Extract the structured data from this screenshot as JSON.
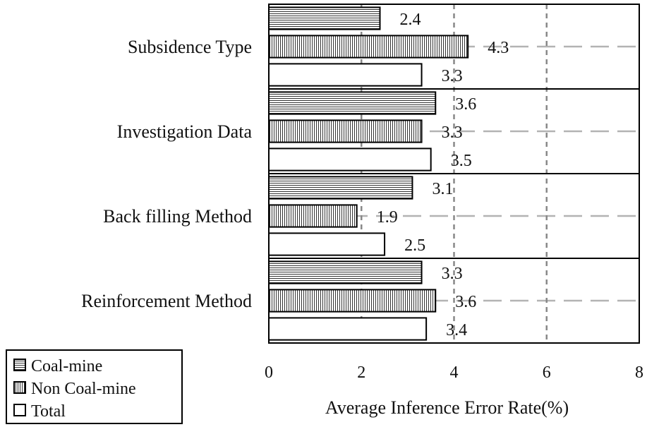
{
  "chart_data": {
    "type": "bar",
    "orientation": "horizontal",
    "categories": [
      "Subsidence Type",
      "Investigation Data",
      "Back filling Method",
      "Reinforcement Method"
    ],
    "series": [
      {
        "name": "Coal-mine",
        "values": [
          2.4,
          3.6,
          3.1,
          3.3
        ],
        "pattern": "horizontal-lines"
      },
      {
        "name": "Non Coal-mine",
        "values": [
          4.3,
          3.3,
          1.9,
          3.6
        ],
        "pattern": "vertical-lines"
      },
      {
        "name": "Total",
        "values": [
          3.3,
          3.5,
          2.5,
          3.4
        ],
        "pattern": "none"
      }
    ],
    "data_labels": [
      [
        "2.4",
        "3.6",
        "3.1",
        "3.3"
      ],
      [
        "4.3",
        "3.3",
        "1.9",
        "3.6"
      ],
      [
        "3.3",
        "3.5",
        "2.5",
        "3.4"
      ]
    ],
    "xlabel": "Average Inference Error Rate(%)",
    "ylabel": "",
    "xlim": [
      0,
      8
    ],
    "xticks": [
      "0",
      "2",
      "4",
      "6",
      "8"
    ],
    "vertical_gridlines_at": [
      2,
      4,
      6
    ],
    "grid": "dashed",
    "legend": {
      "position": "bottom-left",
      "entries": [
        "Coal-mine",
        "Non Coal-mine",
        "Total"
      ]
    },
    "colors": {
      "bar_stroke": "#000000",
      "bar_fill": "#ffffff",
      "pattern": "#333333",
      "grid": "#888888",
      "row_grid": "#b3b3b3"
    }
  }
}
